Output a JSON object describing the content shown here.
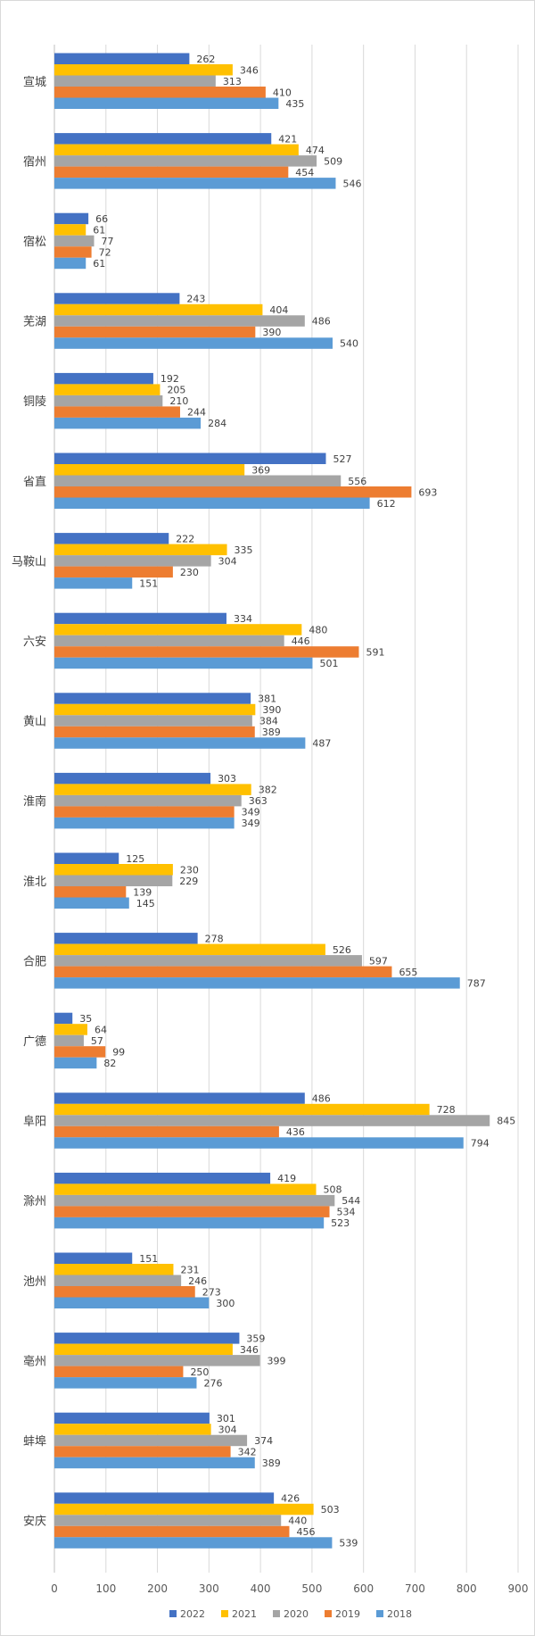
{
  "chart_data": {
    "type": "bar",
    "orientation": "horizontal",
    "categories": [
      "宣城",
      "宿州",
      "宿松",
      "芜湖",
      "铜陵",
      "省直",
      "马鞍山",
      "六安",
      "黄山",
      "淮南",
      "淮北",
      "合肥",
      "广德",
      "阜阳",
      "滁州",
      "池州",
      "亳州",
      "蚌埠",
      "安庆"
    ],
    "series": [
      {
        "name": "2022",
        "color": "#4472C4",
        "values": [
          262,
          421,
          66,
          243,
          192,
          527,
          222,
          334,
          381,
          303,
          125,
          278,
          35,
          486,
          419,
          151,
          359,
          301,
          426
        ]
      },
      {
        "name": "2021",
        "color": "#FFC000",
        "values": [
          346,
          474,
          61,
          404,
          205,
          369,
          335,
          480,
          390,
          382,
          230,
          526,
          64,
          728,
          508,
          231,
          346,
          304,
          503
        ]
      },
      {
        "name": "2020",
        "color": "#A5A5A5",
        "values": [
          313,
          509,
          77,
          486,
          210,
          556,
          304,
          446,
          384,
          363,
          229,
          597,
          57,
          845,
          544,
          246,
          399,
          374,
          440
        ]
      },
      {
        "name": "2019",
        "color": "#ED7D31",
        "values": [
          410,
          454,
          72,
          390,
          244,
          693,
          230,
          591,
          389,
          349,
          139,
          655,
          99,
          436,
          534,
          273,
          250,
          342,
          456
        ]
      },
      {
        "name": "2018",
        "color": "#5B9BD5",
        "values": [
          435,
          546,
          61,
          540,
          284,
          612,
          151,
          501,
          487,
          349,
          145,
          787,
          82,
          794,
          523,
          300,
          276,
          389,
          539
        ]
      }
    ],
    "xlim": [
      0,
      900
    ],
    "xticks": [
      "0",
      "100",
      "200",
      "300",
      "400",
      "500",
      "600",
      "700",
      "800",
      "900"
    ],
    "grid": true,
    "legend_position": "bottom",
    "title": "",
    "xlabel": "",
    "ylabel": ""
  }
}
